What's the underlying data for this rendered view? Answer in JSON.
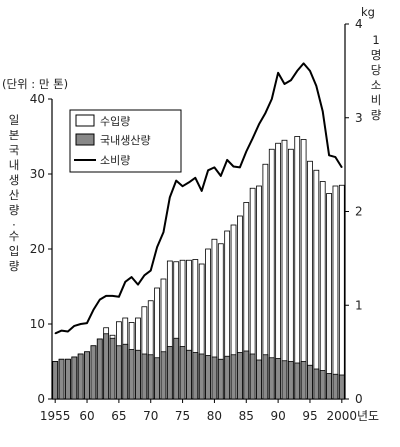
{
  "chart_data": {
    "type": "bar",
    "x_unit": "년도",
    "y_left": {
      "unit_label": "(단위 : 만 톤)",
      "label_chars": [
        "일",
        "본",
        "국",
        "내",
        "생",
        "산",
        "량",
        "·",
        "수",
        "입",
        "량"
      ],
      "ylim": [
        0,
        40
      ],
      "ticks": [
        "0",
        "10",
        "20",
        "30",
        "40"
      ]
    },
    "y_right": {
      "unit": "kg",
      "label_chars": [
        "1",
        "명",
        "당",
        "소",
        "비",
        "량"
      ],
      "ylim": [
        0,
        4
      ],
      "ticks": [
        "0",
        "1",
        "2",
        "3",
        "4"
      ]
    },
    "x_ticks": [
      "1955",
      "60",
      "65",
      "70",
      "75",
      "80",
      "85",
      "90",
      "95",
      "2000"
    ],
    "legend": [
      "수입량",
      "국내생산량",
      "소비량"
    ],
    "years": [
      1955,
      1956,
      1957,
      1958,
      1959,
      1960,
      1961,
      1962,
      1963,
      1964,
      1965,
      1966,
      1967,
      1968,
      1969,
      1970,
      1971,
      1972,
      1973,
      1974,
      1975,
      1976,
      1977,
      1978,
      1979,
      1980,
      1981,
      1982,
      1983,
      1984,
      1985,
      1986,
      1987,
      1988,
      1989,
      1990,
      1991,
      1992,
      1993,
      1994,
      1995,
      1996,
      1997,
      1998,
      1999,
      2000
    ],
    "series": [
      {
        "name": "국내생산량",
        "axis": "left",
        "values": [
          5.0,
          5.3,
          5.3,
          5.6,
          6.0,
          6.3,
          7.1,
          8.0,
          8.7,
          8.1,
          7.1,
          7.3,
          6.6,
          6.5,
          6.0,
          5.9,
          5.5,
          6.3,
          7.0,
          8.1,
          7.0,
          6.5,
          6.2,
          6.0,
          5.8,
          5.6,
          5.3,
          5.7,
          5.9,
          6.2,
          6.4,
          6.0,
          5.2,
          5.9,
          5.5,
          5.4,
          5.1,
          5.0,
          4.8,
          5.0,
          4.5,
          4.0,
          3.8,
          3.4,
          3.3,
          3.2
        ]
      },
      {
        "name": "수입량",
        "axis": "left",
        "values": [
          5.0,
          5.3,
          5.3,
          5.6,
          6.0,
          6.3,
          7.1,
          8.0,
          9.5,
          8.5,
          10.3,
          10.8,
          10.2,
          10.8,
          12.3,
          13.1,
          14.8,
          16.0,
          18.4,
          18.3,
          18.5,
          18.5,
          18.6,
          18.0,
          20.0,
          21.3,
          20.7,
          22.4,
          23.2,
          24.4,
          26.2,
          28.1,
          28.4,
          31.3,
          33.3,
          34.1,
          34.5,
          33.3,
          35.0,
          34.6,
          31.7,
          30.5,
          29.0,
          27.4,
          28.4,
          28.5
        ]
      },
      {
        "name": "소비량",
        "axis": "right",
        "type": "line",
        "values": [
          0.7,
          0.73,
          0.72,
          0.78,
          0.8,
          0.81,
          0.95,
          1.06,
          1.1,
          1.1,
          1.09,
          1.25,
          1.3,
          1.22,
          1.32,
          1.37,
          1.62,
          1.78,
          2.15,
          2.33,
          2.27,
          2.31,
          2.36,
          2.22,
          2.44,
          2.47,
          2.38,
          2.55,
          2.48,
          2.47,
          2.64,
          2.78,
          2.93,
          3.05,
          3.2,
          3.48,
          3.36,
          3.4,
          3.5,
          3.58,
          3.5,
          3.34,
          3.07,
          2.6,
          2.58,
          2.47
        ]
      }
    ]
  }
}
